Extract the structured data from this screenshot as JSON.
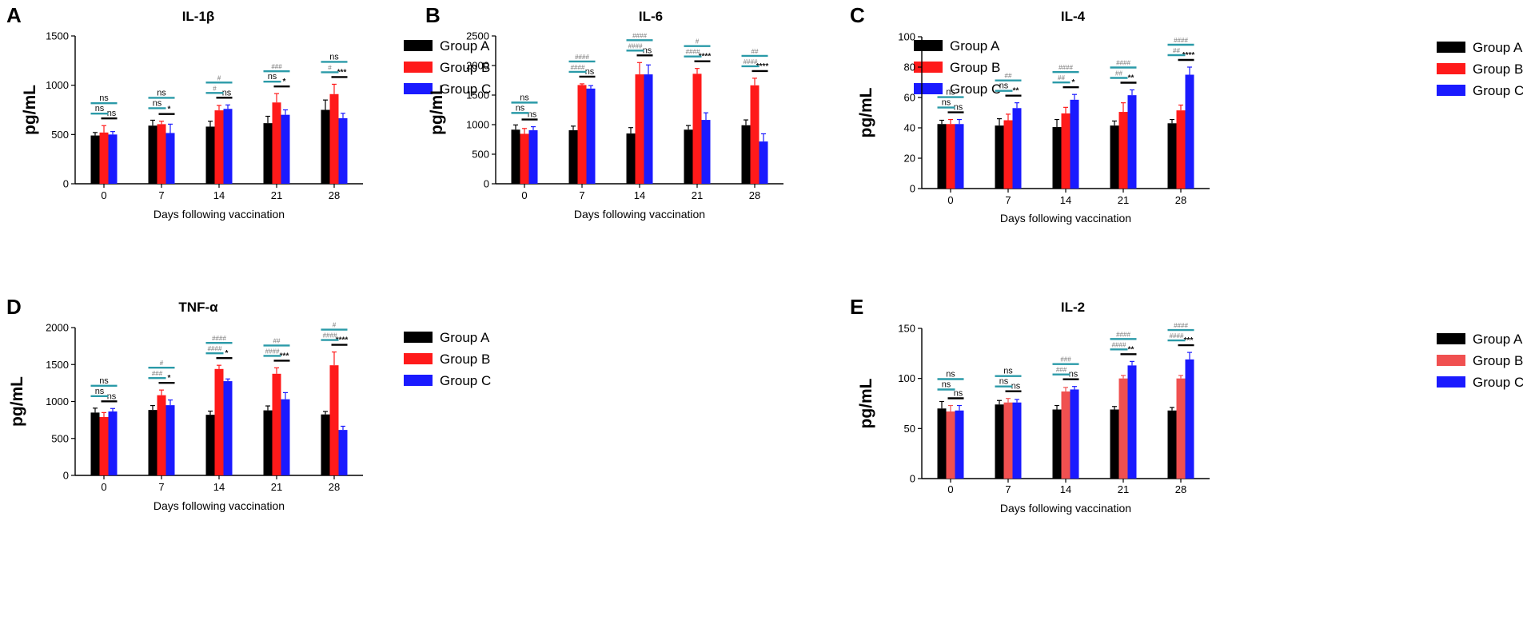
{
  "legend_labels": [
    "Group A",
    "Group B",
    "Group C"
  ],
  "colors": {
    "series": [
      "#000000",
      "#ff1a1a",
      "#1a1aff"
    ],
    "series_panel_e": [
      "#000000",
      "#f05050",
      "#1a1aff"
    ],
    "comparison_ab_ac": "#2a9aa8",
    "comparison_bc": "#000000",
    "axis": "#000000"
  },
  "chart_data": [
    {
      "panel_letter": "A",
      "type": "bar",
      "title": "IL-1β",
      "xlabel": "Days following vaccination",
      "ylabel": "pg/mL",
      "categories": [
        "0",
        "7",
        "14",
        "21",
        "28"
      ],
      "ylim": [
        0,
        1500
      ],
      "yticks": [
        "0",
        "500",
        "1000",
        "1500"
      ],
      "series": [
        {
          "name": "Group A",
          "values": [
            490,
            590,
            580,
            615,
            750
          ],
          "errors": [
            30,
            55,
            55,
            70,
            100
          ]
        },
        {
          "name": "Group B",
          "values": [
            520,
            605,
            745,
            825,
            910
          ],
          "errors": [
            70,
            30,
            50,
            90,
            100
          ]
        },
        {
          "name": "Group C",
          "values": [
            500,
            515,
            760,
            700,
            665
          ],
          "errors": [
            30,
            90,
            40,
            50,
            50
          ]
        }
      ],
      "significance": [
        {
          "ab": "ns",
          "ac": "ns",
          "bc": "ns"
        },
        {
          "ab": "ns",
          "ac": "ns",
          "bc": "*"
        },
        {
          "ab": "#",
          "ac": "#",
          "bc": "ns"
        },
        {
          "ab": "ns",
          "ac": "###",
          "bc": "*"
        },
        {
          "ab": "#",
          "ac": "ns",
          "bc": "***"
        }
      ]
    },
    {
      "panel_letter": "B",
      "type": "bar",
      "title": "IL-6",
      "xlabel": "Days following vaccination",
      "ylabel": "pg/mL",
      "categories": [
        "0",
        "7",
        "14",
        "21",
        "28"
      ],
      "ylim": [
        0,
        2500
      ],
      "yticks": [
        "0",
        "500",
        "1000",
        "1500",
        "2000",
        "2500"
      ],
      "series": [
        {
          "name": "Group A",
          "values": [
            915,
            905,
            850,
            915,
            990
          ],
          "errors": [
            80,
            70,
            100,
            70,
            90
          ]
        },
        {
          "name": "Group B",
          "values": [
            845,
            1670,
            1850,
            1860,
            1665
          ],
          "errors": [
            90,
            20,
            200,
            90,
            120
          ]
        },
        {
          "name": "Group C",
          "values": [
            905,
            1610,
            1850,
            1080,
            715
          ],
          "errors": [
            60,
            50,
            160,
            120,
            130
          ]
        }
      ],
      "significance": [
        {
          "ab": "ns",
          "ac": "ns",
          "bc": "ns"
        },
        {
          "ab": "####",
          "ac": "####",
          "bc": "ns"
        },
        {
          "ab": "####",
          "ac": "####",
          "bc": "ns"
        },
        {
          "ab": "####",
          "ac": "#",
          "bc": "****"
        },
        {
          "ab": "####",
          "ac": "##",
          "bc": "****"
        }
      ]
    },
    {
      "panel_letter": "C",
      "type": "bar",
      "title": "IL-4",
      "xlabel": "Days following vaccination",
      "ylabel": "pg/mL",
      "categories": [
        "0",
        "7",
        "14",
        "21",
        "28"
      ],
      "ylim": [
        0,
        100
      ],
      "yticks": [
        "0",
        "20",
        "40",
        "60",
        "80",
        "100"
      ],
      "series": [
        {
          "name": "Group A",
          "values": [
            42.5,
            41.5,
            40.5,
            41.5,
            43
          ],
          "errors": [
            2.5,
            4.5,
            5,
            3,
            2.5
          ]
        },
        {
          "name": "Group B",
          "values": [
            42.5,
            45,
            49.5,
            50.5,
            51.5
          ],
          "errors": [
            3,
            4,
            4,
            6,
            3.5
          ]
        },
        {
          "name": "Group C",
          "values": [
            42.5,
            53,
            58.5,
            61.5,
            75
          ],
          "errors": [
            3,
            3.5,
            3.5,
            3.5,
            5
          ]
        }
      ],
      "significance": [
        {
          "ab": "ns",
          "ac": "ns",
          "bc": "ns"
        },
        {
          "ab": "ns",
          "ac": "##",
          "bc": "**"
        },
        {
          "ab": "##",
          "ac": "####",
          "bc": "*"
        },
        {
          "ab": "##",
          "ac": "####",
          "bc": "**"
        },
        {
          "ab": "##",
          "ac": "####",
          "bc": "****"
        }
      ]
    },
    {
      "panel_letter": "D",
      "type": "bar",
      "title": "TNF-α",
      "xlabel": "Days following vaccination",
      "ylabel": "pg/mL",
      "categories": [
        "0",
        "7",
        "14",
        "21",
        "28"
      ],
      "ylim": [
        0,
        2000
      ],
      "yticks": [
        "0",
        "500",
        "1000",
        "1500",
        "2000"
      ],
      "series": [
        {
          "name": "Group A",
          "values": [
            850,
            885,
            820,
            880,
            825
          ],
          "errors": [
            60,
            60,
            50,
            60,
            40
          ]
        },
        {
          "name": "Group B",
          "values": [
            790,
            1085,
            1440,
            1375,
            1490
          ],
          "errors": [
            60,
            70,
            50,
            80,
            180
          ]
        },
        {
          "name": "Group C",
          "values": [
            865,
            950,
            1275,
            1030,
            615
          ],
          "errors": [
            40,
            70,
            30,
            90,
            50
          ]
        }
      ],
      "significance": [
        {
          "ab": "ns",
          "ac": "ns",
          "bc": "ns"
        },
        {
          "ab": "###",
          "ac": "#",
          "bc": "*"
        },
        {
          "ab": "####",
          "ac": "####",
          "bc": "*"
        },
        {
          "ab": "####",
          "ac": "##",
          "bc": "***"
        },
        {
          "ab": "####",
          "ac": "#",
          "bc": "****"
        }
      ]
    },
    {
      "panel_letter": "E",
      "type": "bar",
      "title": "IL-2",
      "xlabel": "Days following vaccination",
      "ylabel": "pg/mL",
      "categories": [
        "0",
        "7",
        "14",
        "21",
        "28"
      ],
      "ylim": [
        0,
        150
      ],
      "yticks": [
        "0",
        "50",
        "100",
        "150"
      ],
      "series": [
        {
          "name": "Group A",
          "values": [
            70,
            74,
            69,
            69,
            68
          ],
          "errors": [
            7,
            4,
            4,
            3,
            3
          ]
        },
        {
          "name": "Group B",
          "values": [
            67,
            76,
            87,
            100,
            100
          ],
          "errors": [
            6,
            4,
            4,
            3,
            3
          ]
        },
        {
          "name": "Group C",
          "values": [
            68,
            76,
            89,
            113,
            119
          ],
          "errors": [
            5,
            3,
            3,
            4,
            7
          ]
        }
      ],
      "significance": [
        {
          "ab": "ns",
          "ac": "ns",
          "bc": "ns"
        },
        {
          "ab": "ns",
          "ac": "ns",
          "bc": "ns"
        },
        {
          "ab": "###",
          "ac": "###",
          "bc": "ns"
        },
        {
          "ab": "####",
          "ac": "####",
          "bc": "**"
        },
        {
          "ab": "####",
          "ac": "####",
          "bc": "***"
        }
      ]
    }
  ]
}
